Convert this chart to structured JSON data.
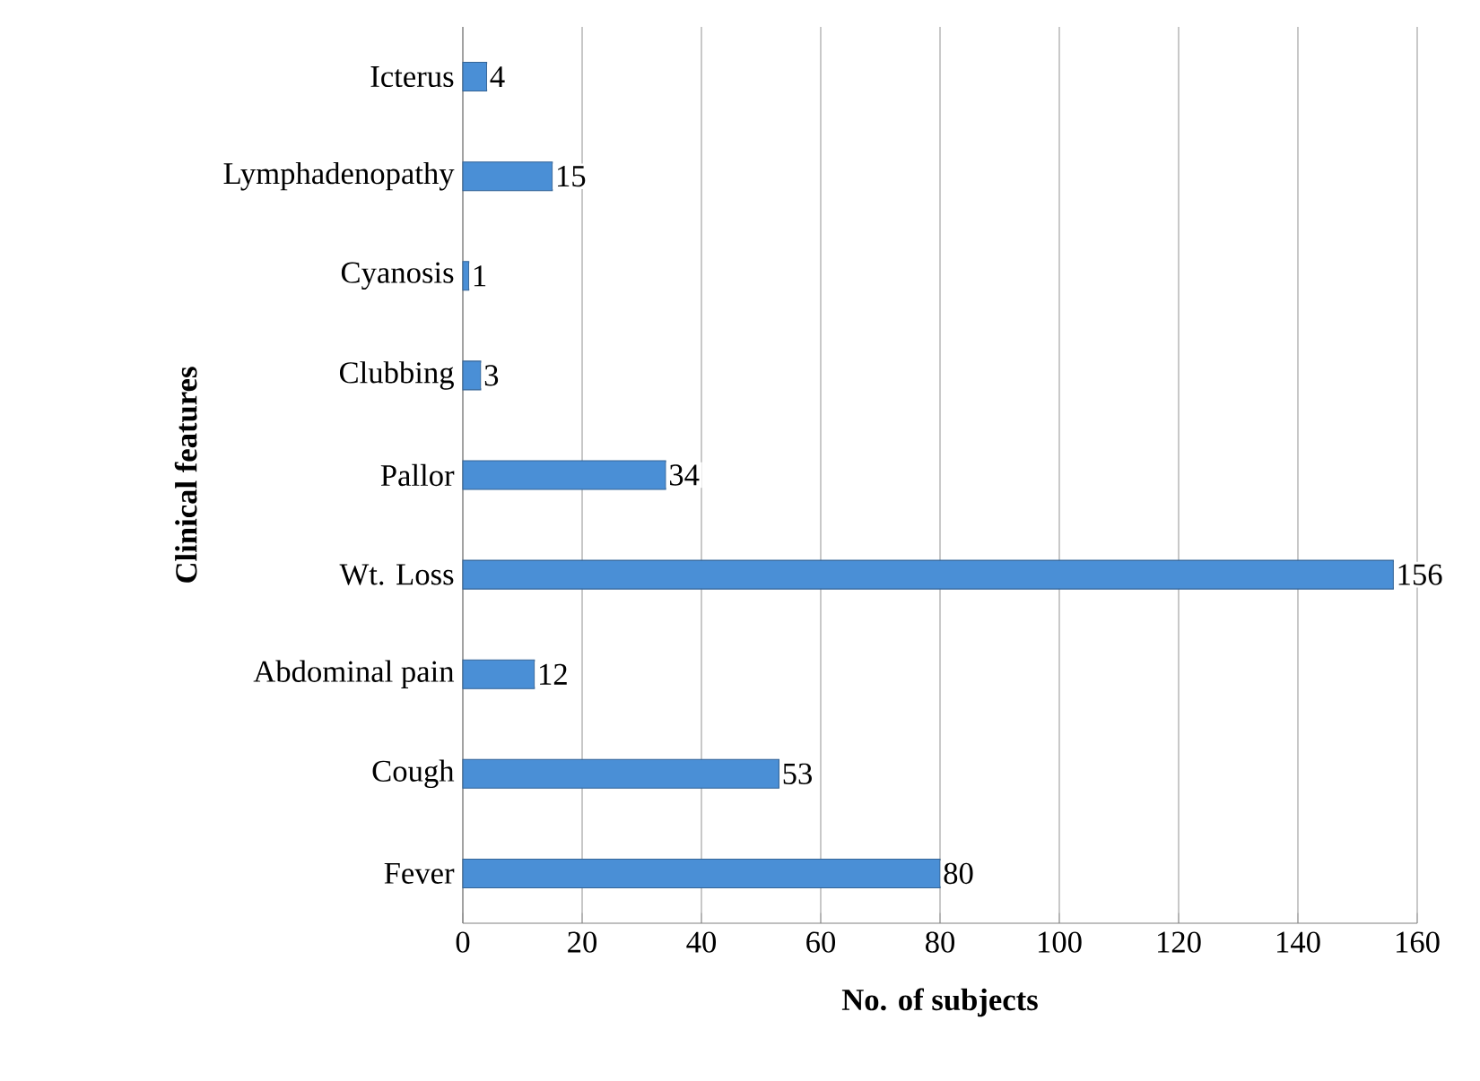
{
  "chart_data": {
    "type": "bar",
    "orientation": "horizontal",
    "xlabel": "No. of subjects",
    "ylabel": "Clinical features",
    "categories": [
      "Icterus",
      "Lymphadenopathy",
      "Cyanosis",
      "Clubbing",
      "Pallor",
      "Wt. Loss",
      "Abdominal pain",
      "Cough",
      "Fever"
    ],
    "values": [
      4,
      15,
      1,
      3,
      34,
      156,
      12,
      53,
      80
    ],
    "color": "#4a8fd6",
    "xlim": [
      0,
      160
    ],
    "xticks": [
      0,
      20,
      40,
      60,
      80,
      100,
      120,
      140,
      160
    ],
    "grid": "x",
    "data_labels": true
  }
}
